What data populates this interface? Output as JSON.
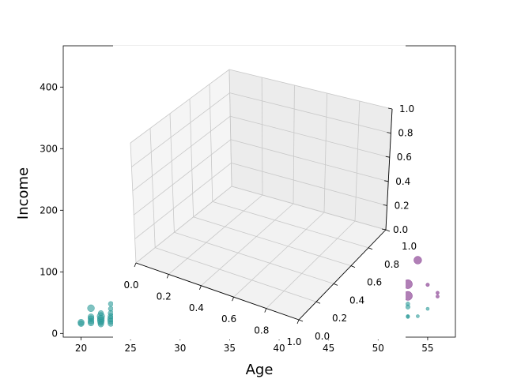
{
  "chart_data": {
    "type": "scatter",
    "title": "",
    "xlabel": "Age",
    "ylabel": "Income",
    "xlim": [
      18.2,
      57.8
    ],
    "ylim": [
      -6,
      467
    ],
    "xticks": [
      "20",
      "25",
      "30",
      "35",
      "40",
      "45",
      "50",
      "55"
    ],
    "yticks": [
      "0",
      "100",
      "200",
      "300",
      "400"
    ],
    "series": [
      {
        "color": "#2a9a98",
        "points": [
          {
            "x": 20,
            "y": 18,
            "s": 20
          },
          {
            "x": 20,
            "y": 16,
            "s": 18
          },
          {
            "x": 21,
            "y": 41,
            "s": 24
          },
          {
            "x": 21,
            "y": 27,
            "s": 18
          },
          {
            "x": 21,
            "y": 24,
            "s": 18
          },
          {
            "x": 21,
            "y": 20,
            "s": 18
          },
          {
            "x": 21,
            "y": 17,
            "s": 18
          },
          {
            "x": 22,
            "y": 33,
            "s": 14
          },
          {
            "x": 22,
            "y": 28,
            "s": 28
          },
          {
            "x": 22,
            "y": 24,
            "s": 24
          },
          {
            "x": 22,
            "y": 21,
            "s": 24
          },
          {
            "x": 22,
            "y": 18,
            "s": 20
          },
          {
            "x": 22,
            "y": 15,
            "s": 16
          },
          {
            "x": 23,
            "y": 48,
            "s": 12
          },
          {
            "x": 23,
            "y": 40,
            "s": 12
          },
          {
            "x": 23,
            "y": 33,
            "s": 14
          },
          {
            "x": 23,
            "y": 28,
            "s": 16
          },
          {
            "x": 23,
            "y": 24,
            "s": 20
          },
          {
            "x": 23,
            "y": 20,
            "s": 20
          },
          {
            "x": 23,
            "y": 16,
            "s": 16
          },
          {
            "x": 53,
            "y": 48,
            "s": 8
          },
          {
            "x": 53,
            "y": 43,
            "s": 10
          },
          {
            "x": 53,
            "y": 28,
            "s": 6
          },
          {
            "x": 53,
            "y": 27,
            "s": 6
          },
          {
            "x": 54,
            "y": 28,
            "s": 5
          },
          {
            "x": 55,
            "y": 40,
            "s": 5
          }
        ]
      },
      {
        "color": "#7b2a86",
        "points": [
          {
            "x": 54,
            "y": 119,
            "s": 30
          },
          {
            "x": 53,
            "y": 80,
            "s": 40
          },
          {
            "x": 53,
            "y": 61,
            "s": 40
          },
          {
            "x": 55,
            "y": 79,
            "s": 6
          },
          {
            "x": 56,
            "y": 66,
            "s": 5
          },
          {
            "x": 56,
            "y": 60,
            "s": 5
          }
        ]
      }
    ],
    "inset_3d": {
      "x_ticks": [
        "0.0",
        "0.2",
        "0.4",
        "0.6",
        "0.8",
        "1.0"
      ],
      "y_ticks": [
        "0.0",
        "0.2",
        "0.4",
        "0.6",
        "0.8",
        "1.0"
      ],
      "z_ticks": [
        "0.0",
        "0.2",
        "0.4",
        "0.6",
        "0.8",
        "1.0"
      ],
      "grid": true,
      "pane_color": "#f2f2f2"
    },
    "grid": false,
    "legend": "none"
  }
}
